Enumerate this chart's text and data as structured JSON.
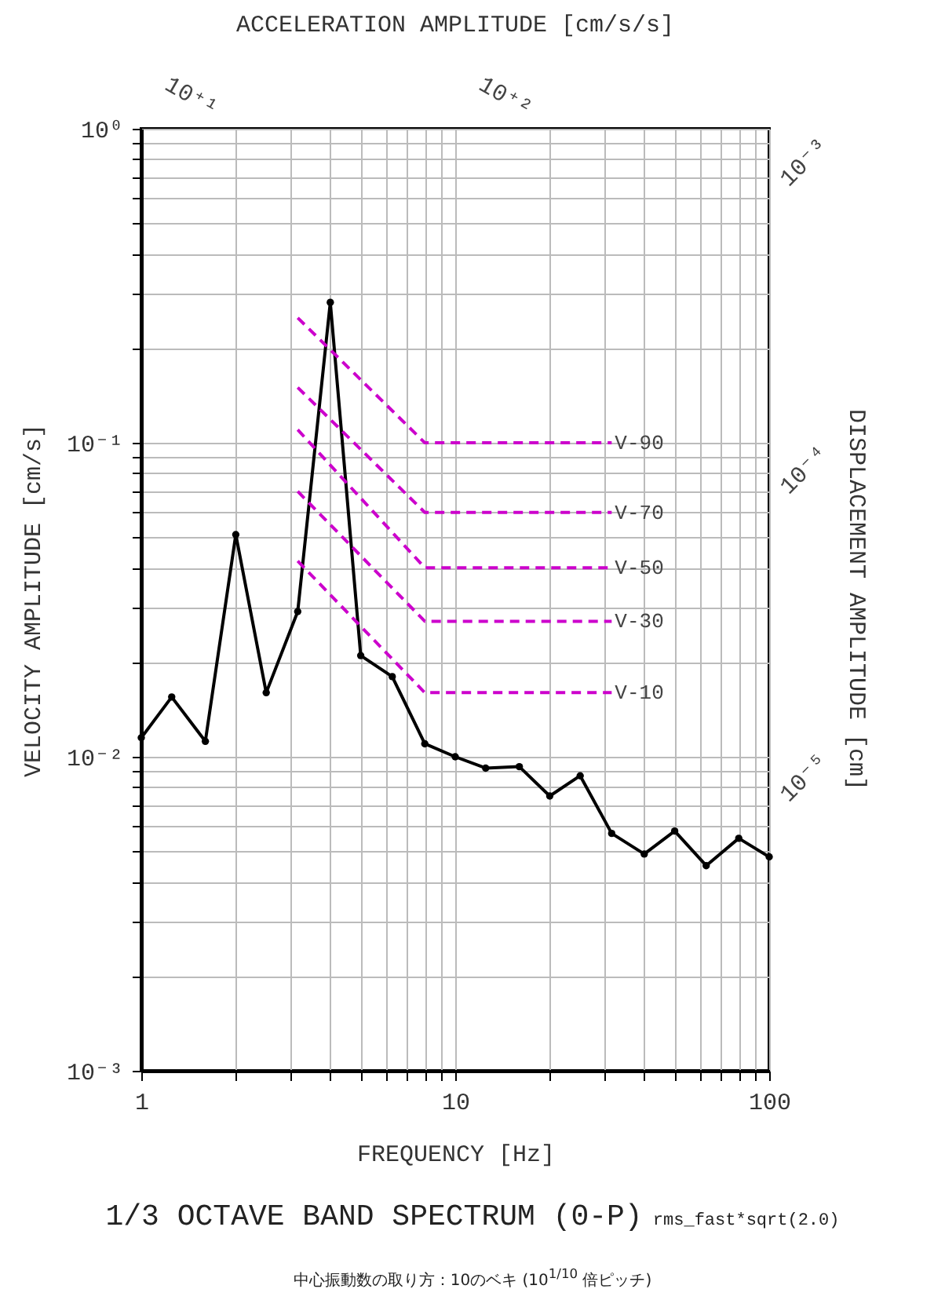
{
  "chart_data": {
    "type": "line",
    "title": "1/3 OCTAVE BAND SPECTRUM (0-P)",
    "subtitle": "rms_fast*sqrt(2.0)",
    "xlabel": "FREQUENCY [Hz]",
    "ylabel": "VELOCITY AMPLITUDE [cm/s]",
    "x2label": "ACCELERATION AMPLITUDE [cm/s/s]",
    "y2label": "DISPLACEMENT AMPLITUDE [cm]",
    "annotations": [
      "10⁺¹",
      "10⁺²",
      "10⁻³",
      "10⁻⁴",
      "10⁻⁵",
      "中心振動数の取り方：10のベキ (10$^{1/10}$ 倍ピッチ)"
    ],
    "log": "xy",
    "grid": true,
    "marker": "circle",
    "line_style": "solid",
    "xlim": [
      1,
      100
    ],
    "ylim": [
      0.001,
      1
    ],
    "xticks": [
      1,
      {
        "value": 2,
        "label": null
      },
      {
        "value": 3,
        "label": null
      },
      {
        "value": 4,
        "label": null
      },
      {
        "value": 5,
        "label": null
      },
      {
        "value": 6,
        "label": null
      },
      {
        "value": 7,
        "label": null
      },
      {
        "value": 8,
        "label": null
      },
      {
        "value": 9,
        "label": null
      },
      10,
      {
        "value": 20,
        "label": null
      },
      {
        "value": 30,
        "label": null
      },
      {
        "value": 40,
        "label": null
      },
      {
        "value": 50,
        "label": null
      },
      {
        "value": 60,
        "label": null
      },
      {
        "value": 70,
        "label": null
      },
      {
        "value": 80,
        "label": null
      },
      {
        "value": 90,
        "label": null
      },
      100
    ],
    "yticks": [
      {
        "value": 0.001,
        "label": "10⁻³"
      },
      {
        "value": 0.002,
        "label": null
      },
      {
        "value": 0.003,
        "label": null
      },
      {
        "value": 0.004,
        "label": null
      },
      {
        "value": 0.005,
        "label": null
      },
      {
        "value": 0.006,
        "label": null
      },
      {
        "value": 0.007,
        "label": null
      },
      {
        "value": 0.008,
        "label": null
      },
      {
        "value": 0.009,
        "label": null
      },
      {
        "value": 0.01,
        "label": "10⁻²"
      },
      {
        "value": 0.02,
        "label": null
      },
      {
        "value": 0.03,
        "label": null
      },
      {
        "value": 0.04,
        "label": null
      },
      {
        "value": 0.05,
        "label": null
      },
      {
        "value": 0.06,
        "label": null
      },
      {
        "value": 0.07,
        "label": null
      },
      {
        "value": 0.08,
        "label": null
      },
      {
        "value": 0.09,
        "label": null
      },
      {
        "value": 0.1,
        "label": "10⁻¹"
      },
      {
        "value": 0.2,
        "label": null
      },
      {
        "value": 0.3,
        "label": null
      },
      {
        "value": 0.4,
        "label": null
      },
      {
        "value": 0.5,
        "label": null
      },
      {
        "value": 0.6,
        "label": null
      },
      {
        "value": 0.7,
        "label": null
      },
      {
        "value": 0.8,
        "label": null
      },
      {
        "value": 0.9,
        "label": null
      },
      {
        "value": 1,
        "label": "10⁰"
      }
    ],
    "series": [
      {
        "color": "#000000",
        "x": [
          1,
          1.25,
          1.6,
          2,
          2.5,
          3.15,
          4,
          5,
          6.3,
          8,
          10,
          12.5,
          16,
          20,
          25,
          31.5,
          40,
          50,
          63,
          80,
          100
        ],
        "values": [
          0.0115,
          0.0155,
          0.0112,
          0.051,
          0.016,
          0.029,
          0.28,
          0.021,
          0.018,
          0.011,
          0.01,
          0.0092,
          0.0093,
          0.0075,
          0.0087,
          0.0057,
          0.0049,
          0.0058,
          0.0045,
          0.0055,
          0.0048
        ]
      },
      {
        "name": "V-90",
        "color": "#cc00cc",
        "line_style": "dashed",
        "marker": "none",
        "x": [
          3.15,
          8,
          31.5
        ],
        "values": [
          0.25,
          0.1,
          0.1
        ]
      },
      {
        "name": "V-70",
        "color": "#cc00cc",
        "line_style": "dashed",
        "marker": "none",
        "x": [
          3.15,
          8,
          31.5
        ],
        "values": [
          0.15,
          0.06,
          0.06
        ]
      },
      {
        "name": "V-50",
        "color": "#cc00cc",
        "line_style": "dashed",
        "marker": "none",
        "x": [
          3.15,
          8,
          31.5
        ],
        "values": [
          0.11,
          0.04,
          0.04
        ]
      },
      {
        "name": "V-30",
        "color": "#cc00cc",
        "line_style": "dashed",
        "marker": "none",
        "x": [
          3.15,
          8,
          31.5
        ],
        "values": [
          0.07,
          0.027,
          0.027
        ]
      },
      {
        "name": "V-10",
        "color": "#cc00cc",
        "line_style": "dashed",
        "marker": "none",
        "x": [
          3.15,
          8,
          31.5
        ],
        "values": [
          0.042,
          0.016,
          0.016
        ]
      }
    ]
  }
}
